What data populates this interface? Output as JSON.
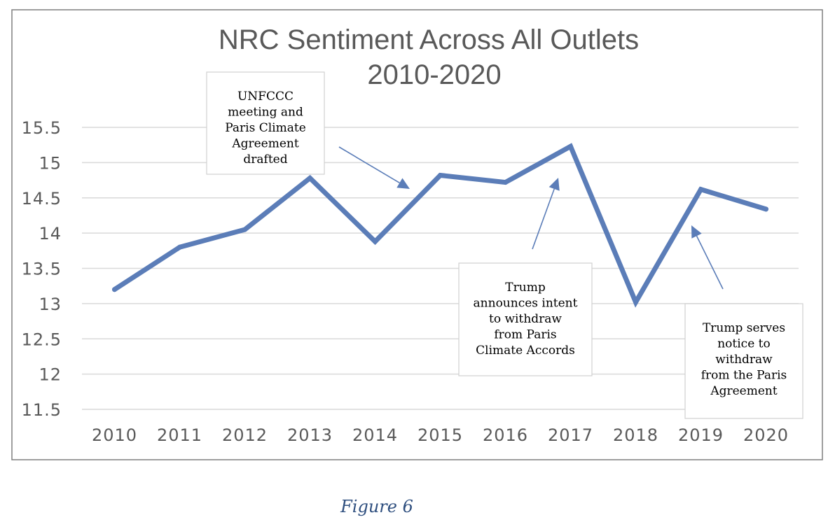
{
  "chart_data": {
    "type": "line",
    "title": [
      "NRC Sentiment Across All Outlets",
      "2010-2020"
    ],
    "categories": [
      "2010",
      "2011",
      "2012",
      "2013",
      "2014",
      "2015",
      "2016",
      "2017",
      "2018",
      "2019",
      "2020"
    ],
    "series": [
      {
        "values": [
          13.2,
          13.8,
          14.05,
          14.78,
          13.88,
          14.82,
          14.72,
          15.23,
          13.02,
          14.62,
          14.34
        ]
      }
    ],
    "yticks": [
      "11.5",
      "12",
      "12.5",
      "13",
      "13.5",
      "14",
      "14.5",
      "15",
      "15.5"
    ],
    "ylim": [
      11.5,
      15.5
    ],
    "grid": true,
    "line_color": "#5B7DB8",
    "annotations": [
      {
        "lines": [
          "UNFCCC",
          "meeting and",
          "Paris Climate",
          "Agreement",
          "drafted"
        ],
        "points_to": "2015"
      },
      {
        "lines": [
          "Trump",
          "announces intent",
          "to withdraw",
          "from Paris",
          "Climate Accords"
        ],
        "points_to": "2017"
      },
      {
        "lines": [
          "Trump  serves",
          "notice to",
          "withdraw",
          "from the  Paris",
          "Agreement"
        ],
        "points_to": "2019"
      }
    ]
  },
  "caption": "Figure 6"
}
